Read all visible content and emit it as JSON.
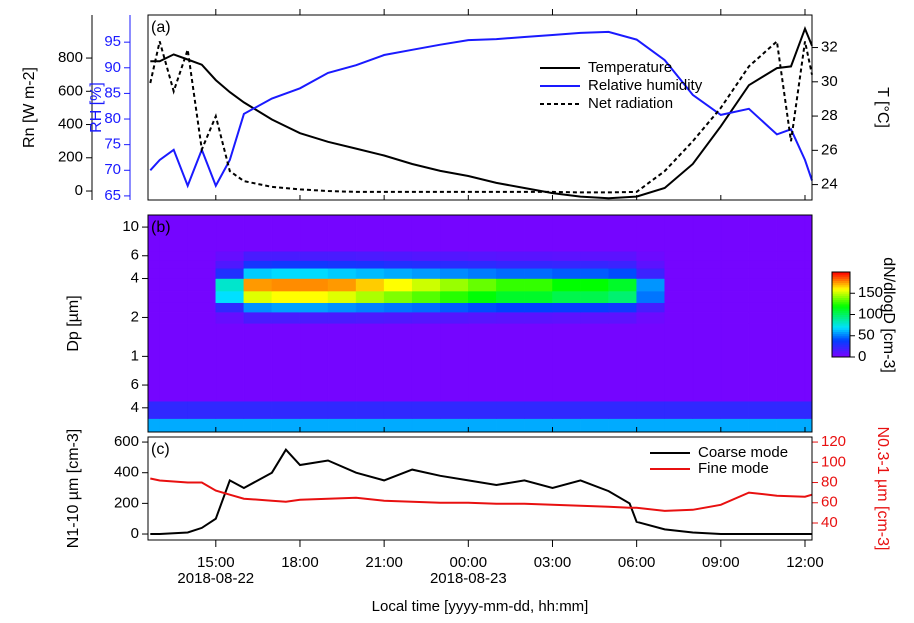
{
  "chart_data": [
    {
      "type": "line",
      "panel_label": "(a)",
      "xlim": [
        "2018-08-22 12:35",
        "2018-08-23 12:15"
      ],
      "x": [
        "2018-08-22 12:40",
        "2018-08-22 13:00",
        "2018-08-22 13:30",
        "2018-08-22 14:00",
        "2018-08-22 14:30",
        "2018-08-22 15:00",
        "2018-08-22 15:30",
        "2018-08-22 16:00",
        "2018-08-22 17:00",
        "2018-08-22 18:00",
        "2018-08-22 19:00",
        "2018-08-22 20:00",
        "2018-08-22 21:00",
        "2018-08-22 22:00",
        "2018-08-22 23:00",
        "2018-08-23 00:00",
        "2018-08-23 01:00",
        "2018-08-23 02:00",
        "2018-08-23 03:00",
        "2018-08-23 04:00",
        "2018-08-23 05:00",
        "2018-08-23 06:00",
        "2018-08-23 07:00",
        "2018-08-23 08:00",
        "2018-08-23 09:00",
        "2018-08-23 10:00",
        "2018-08-23 11:00",
        "2018-08-23 11:30",
        "2018-08-23 12:00",
        "2018-08-23 12:15"
      ],
      "ylabel": "Rn [W m-2]",
      "ylim": [
        -54,
        1059
      ],
      "yticks": [
        0,
        200,
        400,
        600,
        800
      ],
      "y2label": "RH [%]",
      "y2color": "#1a1aff",
      "y2lim": [
        64.2,
        100.3
      ],
      "y2ticks": [
        65,
        70,
        75,
        80,
        85,
        90,
        95
      ],
      "y3label": "T [°C]",
      "y3lim": [
        23.1,
        33.9
      ],
      "y3ticks": [
        24,
        26,
        28,
        30,
        32
      ],
      "series": [
        {
          "name": "Temperature",
          "color": "#000000",
          "axis": "y3",
          "values": [
            31.2,
            31.2,
            31.6,
            31.3,
            31.0,
            30.1,
            29.4,
            28.8,
            27.8,
            27.0,
            26.5,
            26.1,
            25.7,
            25.2,
            24.8,
            24.5,
            24.1,
            23.8,
            23.5,
            23.3,
            23.2,
            23.3,
            23.8,
            25.2,
            27.4,
            29.8,
            30.8,
            30.9,
            33.1,
            32.1
          ]
        },
        {
          "name": "Relative humidity",
          "color": "#1a1aff",
          "axis": "y2",
          "values": [
            70,
            72,
            74,
            67,
            74,
            67,
            72,
            81,
            84,
            86,
            89,
            90.5,
            92.5,
            93.5,
            94.5,
            95.4,
            95.6,
            96,
            96.4,
            96.8,
            97,
            95.5,
            91.5,
            84.7,
            80.8,
            82,
            77,
            78,
            72,
            68
          ]
        },
        {
          "name": "Net radiation",
          "color": "#000000",
          "axis": "y",
          "dash": true,
          "values": [
            650,
            900,
            600,
            850,
            250,
            450,
            120,
            60,
            25,
            10,
            0,
            -5,
            -5,
            -5,
            -5,
            -5,
            -5,
            -5,
            -5,
            -8,
            -8,
            -5,
            120,
            300,
            500,
            750,
            900,
            300,
            900,
            700
          ]
        }
      ]
    },
    {
      "type": "heatmap",
      "panel_label": "(b)",
      "xlim": [
        "2018-08-22 12:35",
        "2018-08-23 12:15"
      ],
      "xbins": [
        "2018-08-22 12:35",
        "2018-08-22 13:00",
        "2018-08-22 14:00",
        "2018-08-22 15:00",
        "2018-08-22 16:00",
        "2018-08-22 17:00",
        "2018-08-22 18:00",
        "2018-08-22 19:00",
        "2018-08-22 20:00",
        "2018-08-22 21:00",
        "2018-08-22 22:00",
        "2018-08-22 23:00",
        "2018-08-23 00:00",
        "2018-08-23 01:00",
        "2018-08-23 02:00",
        "2018-08-23 03:00",
        "2018-08-23 04:00",
        "2018-08-23 05:00",
        "2018-08-23 06:00",
        "2018-08-23 07:00",
        "2018-08-23 08:00",
        "2018-08-23 09:00",
        "2018-08-23 10:00",
        "2018-08-23 11:00",
        "2018-08-23 12:00",
        "2018-08-23 12:15"
      ],
      "ybins": [
        0.26,
        0.33,
        0.45,
        1.8,
        2.2,
        2.6,
        3.2,
        4.0,
        4.8,
        5.5,
        6.5,
        12.4
      ],
      "z": [
        [
          60,
          60,
          60,
          60,
          60,
          60,
          60,
          60,
          60,
          60,
          60,
          60,
          60,
          60,
          60,
          60,
          60,
          60,
          60,
          60,
          60,
          60,
          60,
          60,
          60
        ],
        [
          25,
          25,
          25,
          25,
          25,
          25,
          25,
          25,
          25,
          25,
          25,
          25,
          25,
          25,
          25,
          25,
          25,
          25,
          25,
          25,
          25,
          25,
          25,
          25,
          25
        ],
        [
          3,
          3,
          3,
          3,
          3,
          3,
          3,
          3,
          3,
          3,
          3,
          3,
          3,
          3,
          3,
          3,
          3,
          3,
          3,
          3,
          3,
          3,
          3,
          3,
          3
        ],
        [
          3,
          3,
          3,
          8,
          17,
          17,
          17,
          17,
          16,
          15,
          14,
          14,
          13,
          12,
          12,
          11,
          11,
          11,
          6,
          3,
          3,
          3,
          3,
          3,
          3
        ],
        [
          3,
          3,
          3,
          25,
          55,
          58,
          58,
          55,
          52,
          50,
          48,
          45,
          42,
          40,
          40,
          38,
          38,
          35,
          18,
          3,
          3,
          3,
          3,
          3,
          3
        ],
        [
          3,
          3,
          3,
          70,
          155,
          160,
          160,
          155,
          147,
          140,
          133,
          126,
          119,
          112,
          112,
          105,
          105,
          98,
          50,
          3,
          3,
          3,
          3,
          3,
          3
        ],
        [
          3,
          3,
          3,
          80,
          176,
          178,
          178,
          176,
          168,
          160,
          152,
          144,
          136,
          128,
          128,
          120,
          120,
          112,
          56,
          3,
          3,
          3,
          3,
          3,
          3
        ],
        [
          3,
          3,
          3,
          30,
          66,
          69,
          69,
          66,
          63,
          60,
          57,
          54,
          51,
          48,
          48,
          45,
          45,
          42,
          21,
          3,
          3,
          3,
          3,
          3,
          3
        ],
        [
          3,
          3,
          3,
          15,
          33,
          35,
          35,
          33,
          32,
          30,
          29,
          27,
          26,
          24,
          24,
          23,
          23,
          21,
          11,
          3,
          3,
          3,
          3,
          3,
          3
        ],
        [
          3,
          3,
          3,
          8,
          17,
          17,
          17,
          17,
          16,
          15,
          14,
          14,
          13,
          12,
          12,
          11,
          11,
          11,
          6,
          3,
          3,
          3,
          3,
          3,
          3
        ],
        [
          3,
          3,
          3,
          3,
          3,
          3,
          3,
          3,
          3,
          3,
          3,
          3,
          3,
          3,
          3,
          3,
          3,
          3,
          3,
          3,
          3,
          3,
          3,
          3,
          3
        ]
      ],
      "ylabel": "Dp [µm]",
      "ylog": true,
      "ylim": [
        0.26,
        12.4
      ],
      "yticks": [
        {
          "value": 0.4,
          "label": "4"
        },
        {
          "value": 0.6,
          "label": "6"
        },
        1,
        2,
        4,
        6,
        10
      ],
      "clabel": "dN/dlogD [cm-3]",
      "clim": [
        0,
        200
      ],
      "cticks": [
        0,
        50,
        100,
        150
      ]
    },
    {
      "type": "line",
      "panel_label": "(c)",
      "xlim": [
        "2018-08-22 12:35",
        "2018-08-23 12:15"
      ],
      "x": [
        "2018-08-22 12:40",
        "2018-08-22 13:00",
        "2018-08-22 14:00",
        "2018-08-22 14:30",
        "2018-08-22 15:00",
        "2018-08-22 15:30",
        "2018-08-22 16:00",
        "2018-08-22 17:00",
        "2018-08-22 17:30",
        "2018-08-22 18:00",
        "2018-08-22 19:00",
        "2018-08-22 20:00",
        "2018-08-22 21:00",
        "2018-08-22 22:00",
        "2018-08-22 23:00",
        "2018-08-23 00:00",
        "2018-08-23 01:00",
        "2018-08-23 02:00",
        "2018-08-23 03:00",
        "2018-08-23 04:00",
        "2018-08-23 05:00",
        "2018-08-23 05:45",
        "2018-08-23 06:00",
        "2018-08-23 07:00",
        "2018-08-23 08:00",
        "2018-08-23 09:00",
        "2018-08-23 10:00",
        "2018-08-23 11:00",
        "2018-08-23 12:00",
        "2018-08-23 12:15"
      ],
      "ylabel": "N1-10 µm [cm-3]",
      "ylim": [
        -39,
        633
      ],
      "yticks": [
        0,
        200,
        400,
        600
      ],
      "y2label": "N0.3-1 µm [cm-3]",
      "y2color": "#e81010",
      "y2lim": [
        23.2,
        125
      ],
      "y2ticks": [
        40,
        60,
        80,
        100,
        120
      ],
      "series": [
        {
          "name": "Coarse mode",
          "color": "#000000",
          "axis": "y",
          "values": [
            0,
            0,
            10,
            40,
            100,
            350,
            300,
            400,
            550,
            450,
            480,
            400,
            350,
            420,
            380,
            350,
            320,
            350,
            300,
            350,
            280,
            200,
            80,
            30,
            10,
            0,
            0,
            0,
            0,
            0
          ]
        },
        {
          "name": "Fine mode",
          "color": "#e81010",
          "axis": "y2",
          "values": [
            84,
            82,
            80,
            80,
            72,
            68,
            64,
            62,
            61,
            63,
            64,
            65,
            62,
            61,
            60,
            60,
            59,
            59,
            58,
            57,
            56,
            55,
            55,
            52,
            53,
            58,
            70,
            67,
            66,
            68
          ]
        }
      ],
      "xticks": [
        {
          "value": "2018-08-22 15:00",
          "label": "15:00"
        },
        {
          "value": "2018-08-22 18:00",
          "label": "18:00"
        },
        {
          "value": "2018-08-22 21:00",
          "label": "21:00"
        },
        {
          "value": "2018-08-23 00:00",
          "label": "00:00"
        },
        {
          "value": "2018-08-23 03:00",
          "label": "03:00"
        },
        {
          "value": "2018-08-23 06:00",
          "label": "06:00"
        },
        {
          "value": "2018-08-23 09:00",
          "label": "09:00"
        },
        {
          "value": "2018-08-23 12:00",
          "label": "12:00"
        }
      ],
      "xdates": [
        {
          "value": "2018-08-22 15:00",
          "label": "2018-08-22"
        },
        {
          "value": "2018-08-23 00:00",
          "label": "2018-08-23"
        }
      ],
      "xlabel": "Local time [yyyy-mm-dd, hh:mm]"
    }
  ]
}
